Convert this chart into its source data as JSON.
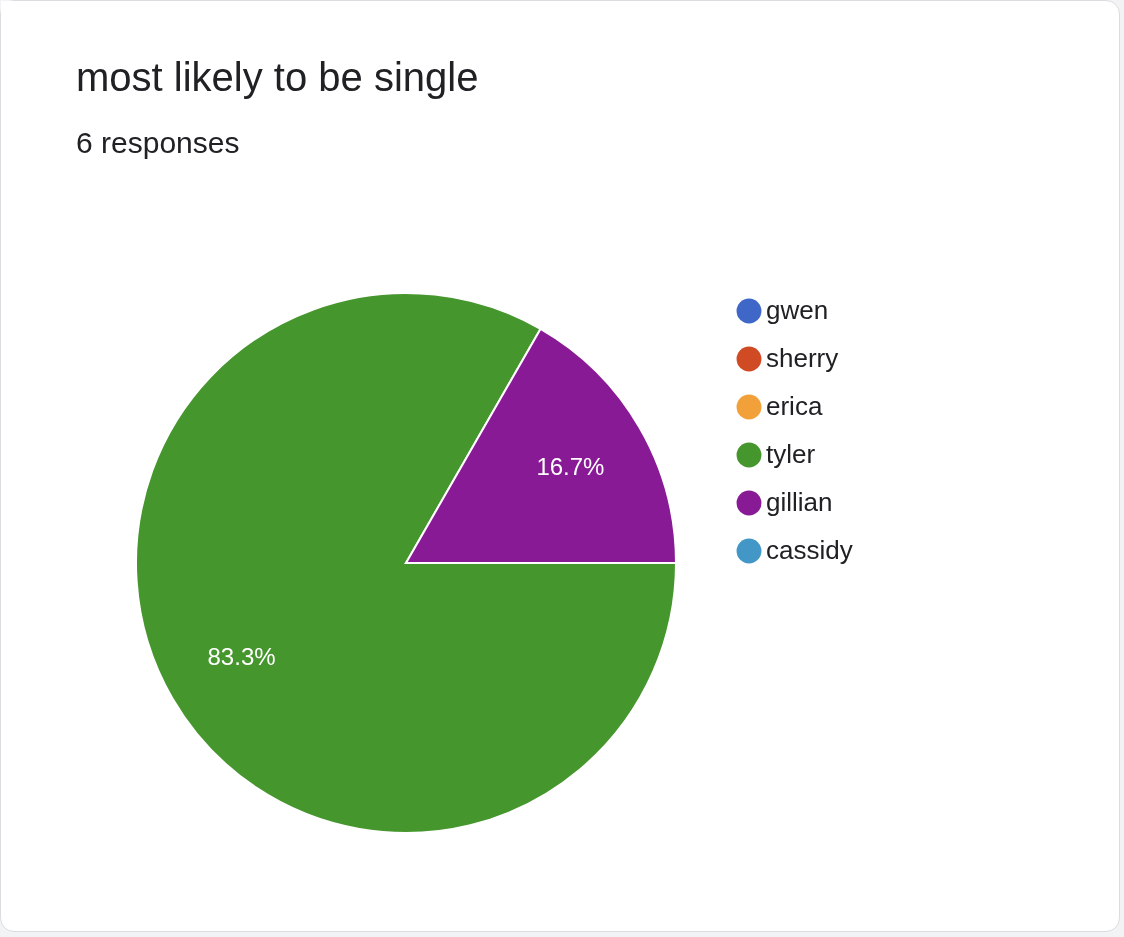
{
  "chart_data": {
    "type": "pie",
    "title": "most likely to be single",
    "subtitle": "6 responses",
    "categories": [
      "gwen",
      "sherry",
      "erica",
      "tyler",
      "gillian",
      "cassidy"
    ],
    "values": [
      0,
      0,
      0,
      83.3,
      16.7,
      0
    ],
    "colors": [
      "#3f67c8",
      "#d04a24",
      "#f2a03a",
      "#46962e",
      "#891a95",
      "#4397c6"
    ],
    "value_labels": [
      null,
      null,
      null,
      "83.3%",
      "16.7%",
      null
    ],
    "legend": "right"
  }
}
